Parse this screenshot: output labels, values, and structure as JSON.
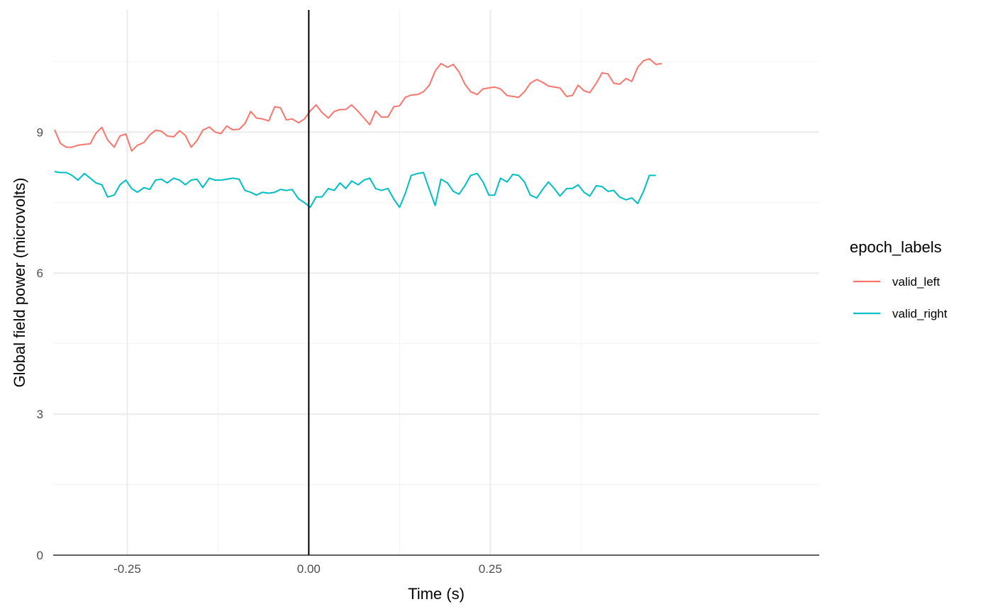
{
  "chart_data": {
    "type": "line",
    "xlabel": "Time (s)",
    "ylabel": "Global field power (microvolts)",
    "xlim": [
      -0.352,
      0.703
    ],
    "ylim": [
      0,
      11.6
    ],
    "x_ticks": [
      -0.25,
      0.0,
      0.25
    ],
    "x_tick_labels": [
      "-0.25",
      "0.00",
      "0.25"
    ],
    "y_ticks": [
      0,
      3,
      6,
      9
    ],
    "y_tick_labels": [
      "0",
      "3",
      "6",
      "9"
    ],
    "grid": true,
    "vline_x": 0.0,
    "legend": {
      "title": "epoch_labels",
      "position": "right"
    },
    "series": [
      {
        "name": "valid_left",
        "color": "#F8766D",
        "points": [
          [
            -0.35,
            9.05
          ],
          [
            -0.342,
            8.76
          ],
          [
            -0.334,
            8.68
          ],
          [
            -0.326,
            8.68
          ],
          [
            -0.318,
            8.72
          ],
          [
            -0.309,
            8.74
          ],
          [
            -0.301,
            8.75
          ],
          [
            -0.293,
            8.98
          ],
          [
            -0.285,
            9.1
          ],
          [
            -0.277,
            8.83
          ],
          [
            -0.268,
            8.68
          ],
          [
            -0.26,
            8.92
          ],
          [
            -0.252,
            8.96
          ],
          [
            -0.244,
            8.6
          ],
          [
            -0.236,
            8.72
          ],
          [
            -0.227,
            8.78
          ],
          [
            -0.219,
            8.94
          ],
          [
            -0.211,
            9.04
          ],
          [
            -0.203,
            9.02
          ],
          [
            -0.195,
            8.92
          ],
          [
            -0.186,
            8.9
          ],
          [
            -0.178,
            9.03
          ],
          [
            -0.17,
            8.93
          ],
          [
            -0.162,
            8.68
          ],
          [
            -0.154,
            8.82
          ],
          [
            -0.146,
            9.04
          ],
          [
            -0.137,
            9.11
          ],
          [
            -0.129,
            9.0
          ],
          [
            -0.121,
            8.97
          ],
          [
            -0.113,
            9.13
          ],
          [
            -0.105,
            9.05
          ],
          [
            -0.096,
            9.06
          ],
          [
            -0.088,
            9.18
          ],
          [
            -0.08,
            9.44
          ],
          [
            -0.072,
            9.3
          ],
          [
            -0.064,
            9.28
          ],
          [
            -0.055,
            9.24
          ],
          [
            -0.047,
            9.54
          ],
          [
            -0.039,
            9.52
          ],
          [
            -0.031,
            9.26
          ],
          [
            -0.023,
            9.28
          ],
          [
            -0.014,
            9.2
          ],
          [
            -0.006,
            9.28
          ],
          [
            0.002,
            9.45
          ],
          [
            0.01,
            9.58
          ],
          [
            0.018,
            9.42
          ],
          [
            0.027,
            9.3
          ],
          [
            0.035,
            9.44
          ],
          [
            0.043,
            9.48
          ],
          [
            0.051,
            9.48
          ],
          [
            0.059,
            9.58
          ],
          [
            0.068,
            9.44
          ],
          [
            0.076,
            9.3
          ],
          [
            0.084,
            9.16
          ],
          [
            0.092,
            9.45
          ],
          [
            0.1,
            9.32
          ],
          [
            0.109,
            9.32
          ],
          [
            0.117,
            9.54
          ],
          [
            0.125,
            9.56
          ],
          [
            0.133,
            9.74
          ],
          [
            0.141,
            9.79
          ],
          [
            0.15,
            9.8
          ],
          [
            0.158,
            9.86
          ],
          [
            0.166,
            10.0
          ],
          [
            0.174,
            10.3
          ],
          [
            0.182,
            10.46
          ],
          [
            0.191,
            10.38
          ],
          [
            0.199,
            10.44
          ],
          [
            0.207,
            10.28
          ],
          [
            0.215,
            10.02
          ],
          [
            0.223,
            9.86
          ],
          [
            0.232,
            9.8
          ],
          [
            0.24,
            9.92
          ],
          [
            0.248,
            9.94
          ],
          [
            0.256,
            9.96
          ],
          [
            0.264,
            9.92
          ],
          [
            0.273,
            9.78
          ],
          [
            0.281,
            9.76
          ],
          [
            0.289,
            9.74
          ],
          [
            0.297,
            9.86
          ],
          [
            0.305,
            10.04
          ],
          [
            0.314,
            10.12
          ],
          [
            0.322,
            10.06
          ],
          [
            0.33,
            9.98
          ],
          [
            0.338,
            9.96
          ],
          [
            0.346,
            9.94
          ],
          [
            0.355,
            9.76
          ],
          [
            0.363,
            9.78
          ],
          [
            0.371,
            10.0
          ],
          [
            0.379,
            9.88
          ],
          [
            0.387,
            9.84
          ],
          [
            0.396,
            10.04
          ],
          [
            0.404,
            10.26
          ],
          [
            0.412,
            10.24
          ],
          [
            0.42,
            10.04
          ],
          [
            0.428,
            10.02
          ],
          [
            0.437,
            10.14
          ],
          [
            0.445,
            10.08
          ],
          [
            0.453,
            10.38
          ],
          [
            0.461,
            10.52
          ],
          [
            0.469,
            10.56
          ],
          [
            0.478,
            10.44
          ],
          [
            0.486,
            10.46
          ]
        ]
      },
      {
        "name": "valid_right",
        "color": "#00BFC4",
        "points": [
          [
            -0.35,
            8.16
          ],
          [
            -0.342,
            8.14
          ],
          [
            -0.334,
            8.14
          ],
          [
            -0.326,
            8.08
          ],
          [
            -0.318,
            7.98
          ],
          [
            -0.309,
            8.12
          ],
          [
            -0.301,
            8.02
          ],
          [
            -0.293,
            7.92
          ],
          [
            -0.285,
            7.88
          ],
          [
            -0.277,
            7.62
          ],
          [
            -0.268,
            7.66
          ],
          [
            -0.26,
            7.88
          ],
          [
            -0.252,
            7.98
          ],
          [
            -0.244,
            7.8
          ],
          [
            -0.236,
            7.72
          ],
          [
            -0.227,
            7.82
          ],
          [
            -0.219,
            7.78
          ],
          [
            -0.211,
            7.98
          ],
          [
            -0.203,
            8.0
          ],
          [
            -0.195,
            7.92
          ],
          [
            -0.186,
            8.02
          ],
          [
            -0.178,
            7.98
          ],
          [
            -0.17,
            7.88
          ],
          [
            -0.162,
            7.98
          ],
          [
            -0.154,
            8.0
          ],
          [
            -0.146,
            7.82
          ],
          [
            -0.137,
            8.02
          ],
          [
            -0.129,
            7.98
          ],
          [
            -0.121,
            7.98
          ],
          [
            -0.113,
            8.0
          ],
          [
            -0.105,
            8.02
          ],
          [
            -0.096,
            8.0
          ],
          [
            -0.088,
            7.76
          ],
          [
            -0.08,
            7.72
          ],
          [
            -0.072,
            7.66
          ],
          [
            -0.064,
            7.72
          ],
          [
            -0.055,
            7.7
          ],
          [
            -0.047,
            7.72
          ],
          [
            -0.039,
            7.78
          ],
          [
            -0.031,
            7.76
          ],
          [
            -0.023,
            7.78
          ],
          [
            -0.014,
            7.58
          ],
          [
            -0.006,
            7.5
          ],
          [
            0.002,
            7.4
          ],
          [
            0.01,
            7.62
          ],
          [
            0.018,
            7.62
          ],
          [
            0.027,
            7.8
          ],
          [
            0.035,
            7.76
          ],
          [
            0.043,
            7.92
          ],
          [
            0.051,
            7.8
          ],
          [
            0.059,
            7.96
          ],
          [
            0.068,
            7.88
          ],
          [
            0.076,
            7.98
          ],
          [
            0.084,
            8.02
          ],
          [
            0.092,
            7.8
          ],
          [
            0.1,
            7.76
          ],
          [
            0.109,
            7.8
          ],
          [
            0.117,
            7.58
          ],
          [
            0.125,
            7.4
          ],
          [
            0.133,
            7.7
          ],
          [
            0.141,
            8.08
          ],
          [
            0.15,
            8.12
          ],
          [
            0.158,
            8.14
          ],
          [
            0.166,
            7.78
          ],
          [
            0.174,
            7.44
          ],
          [
            0.182,
            8.0
          ],
          [
            0.191,
            7.92
          ],
          [
            0.199,
            7.74
          ],
          [
            0.207,
            7.68
          ],
          [
            0.215,
            7.86
          ],
          [
            0.223,
            8.08
          ],
          [
            0.232,
            8.12
          ],
          [
            0.24,
            7.94
          ],
          [
            0.248,
            7.66
          ],
          [
            0.256,
            7.66
          ],
          [
            0.264,
            8.02
          ],
          [
            0.273,
            7.94
          ],
          [
            0.281,
            8.1
          ],
          [
            0.289,
            8.08
          ],
          [
            0.297,
            7.94
          ],
          [
            0.305,
            7.66
          ],
          [
            0.314,
            7.6
          ],
          [
            0.322,
            7.78
          ],
          [
            0.33,
            7.94
          ],
          [
            0.338,
            7.8
          ],
          [
            0.346,
            7.64
          ],
          [
            0.355,
            7.8
          ],
          [
            0.363,
            7.8
          ],
          [
            0.371,
            7.88
          ],
          [
            0.379,
            7.72
          ],
          [
            0.387,
            7.64
          ],
          [
            0.396,
            7.86
          ],
          [
            0.404,
            7.84
          ],
          [
            0.412,
            7.74
          ],
          [
            0.42,
            7.76
          ],
          [
            0.428,
            7.62
          ],
          [
            0.437,
            7.56
          ],
          [
            0.445,
            7.6
          ],
          [
            0.453,
            7.48
          ],
          [
            0.461,
            7.74
          ],
          [
            0.469,
            8.08
          ],
          [
            0.478,
            8.08
          ]
        ]
      }
    ]
  }
}
